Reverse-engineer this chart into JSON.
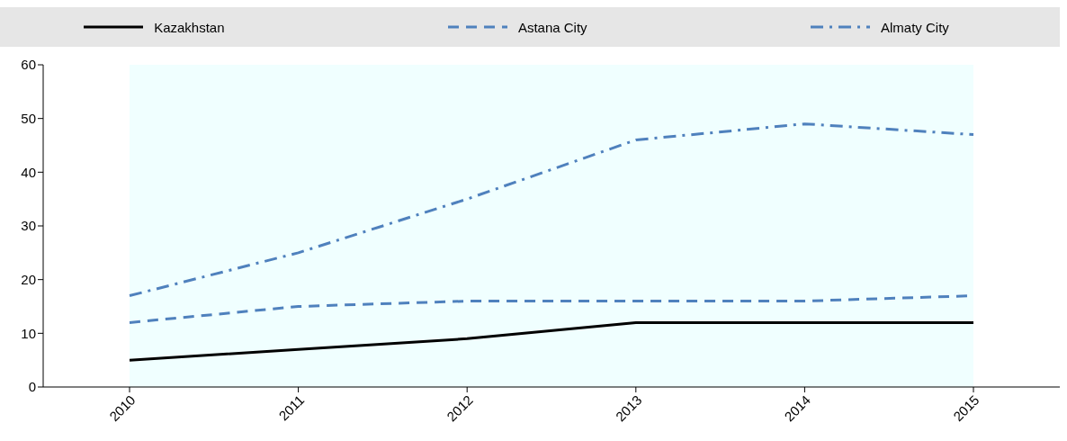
{
  "chart_data": {
    "type": "line",
    "categories": [
      "2010",
      "2011",
      "2012",
      "2013",
      "2014",
      "2015"
    ],
    "series": [
      {
        "name": "Kazakhstan",
        "color": "#000000",
        "line_style": "solid",
        "values": [
          5,
          7,
          9,
          12,
          12,
          12
        ]
      },
      {
        "name": "Astana City",
        "color": "#4f81bd",
        "line_style": "dashed",
        "values": [
          12,
          15,
          16,
          16,
          16,
          17
        ]
      },
      {
        "name": "Almaty City",
        "color": "#4f81bd",
        "line_style": "dashdot",
        "values": [
          17,
          25,
          35,
          46,
          49,
          47
        ]
      }
    ],
    "ylim": [
      0,
      60
    ],
    "yticks": [
      0,
      10,
      20,
      30,
      40,
      50,
      60
    ],
    "legend": "top",
    "marker": "none"
  }
}
